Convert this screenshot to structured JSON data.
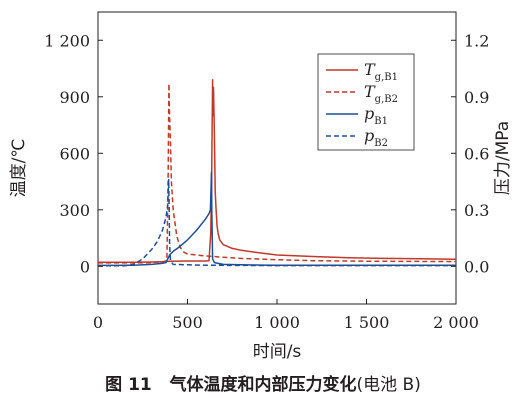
{
  "caption": {
    "number": "图 11",
    "text": "气体温度和内部压力变化",
    "tail": "(电池 B)"
  },
  "chart_data": {
    "type": "line",
    "xlabel": "时间/s",
    "ylabel_left": "温度/℃",
    "ylabel_right": "压力/MPa",
    "xlim": [
      0,
      2000
    ],
    "ylim_left": [
      -200,
      1350
    ],
    "ylim_right": [
      -0.2,
      1.35
    ],
    "x_ticks": [
      0,
      500,
      1000,
      1500,
      2000
    ],
    "x_tick_labels": [
      "0",
      "500",
      "1 000",
      "1 500",
      "2 000"
    ],
    "y_left_ticks": [
      0,
      300,
      600,
      900,
      1200
    ],
    "y_left_tick_labels": [
      "0",
      "300",
      "600",
      "900",
      "1 200"
    ],
    "y_right_ticks": [
      0,
      0.3,
      0.6,
      0.9,
      1.2
    ],
    "y_right_tick_labels": [
      "0.0",
      "0.3",
      "0.6",
      "0.9",
      "1.2"
    ],
    "grid": false,
    "legend_position": "top-right",
    "series": [
      {
        "name": "T",
        "sub": "g,B1",
        "axis": "left",
        "color": "#c0392b",
        "dash": "solid",
        "x": [
          0,
          100,
          200,
          300,
          380,
          400,
          500,
          600,
          620,
          630,
          635,
          640,
          642,
          645,
          650,
          655,
          660,
          665,
          670,
          680,
          700,
          750,
          800,
          900,
          1000,
          1200,
          1400,
          1600,
          1800,
          2000
        ],
        "y": [
          22,
          22,
          22,
          23,
          25,
          27,
          28,
          28,
          30,
          180,
          500,
          990,
          800,
          950,
          700,
          400,
          300,
          220,
          180,
          140,
          115,
          95,
          85,
          72,
          60,
          52,
          45,
          42,
          40,
          38
        ]
      },
      {
        "name": "T",
        "sub": "g,B2",
        "axis": "left",
        "color": "#c0392b",
        "dash": "dashed",
        "x": [
          0,
          100,
          200,
          300,
          360,
          385,
          392,
          396,
          400,
          405,
          410,
          420,
          440,
          460,
          480,
          500,
          550,
          600,
          650,
          700,
          800,
          1000,
          1200,
          1500,
          2000
        ],
        "y": [
          18,
          18,
          18,
          20,
          24,
          30,
          500,
          970,
          800,
          650,
          450,
          300,
          160,
          100,
          75,
          65,
          60,
          55,
          52,
          48,
          42,
          35,
          30,
          27,
          25
        ]
      },
      {
        "name": "p",
        "sub": "B1",
        "axis": "right",
        "color": "#1f4e99",
        "dash": "solid",
        "x": [
          0,
          100,
          200,
          300,
          350,
          380,
          385,
          390,
          400,
          420,
          450,
          500,
          550,
          600,
          620,
          628,
          634,
          636,
          640,
          650,
          700,
          800,
          1000,
          1500,
          2000
        ],
        "y": [
          0.005,
          0.005,
          0.006,
          0.01,
          0.015,
          0.02,
          0.03,
          0.04,
          0.06,
          0.08,
          0.1,
          0.14,
          0.19,
          0.25,
          0.28,
          0.3,
          0.5,
          0.3,
          0.04,
          0.02,
          0.01,
          0.008,
          0.006,
          0.006,
          0.006
        ]
      },
      {
        "name": "p",
        "sub": "B2",
        "axis": "right",
        "color": "#1f4e99",
        "dash": "dashed",
        "x": [
          0,
          150,
          200,
          250,
          300,
          330,
          360,
          380,
          390,
          395,
          398,
          400,
          405,
          420,
          500,
          600,
          800,
          1000,
          1500,
          2000
        ],
        "y": [
          0.003,
          0.003,
          0.01,
          0.04,
          0.09,
          0.13,
          0.19,
          0.26,
          0.33,
          0.46,
          0.3,
          0.12,
          0.03,
          0.01,
          0.008,
          0.006,
          0.005,
          0.004,
          0.004,
          0.004
        ]
      }
    ]
  }
}
